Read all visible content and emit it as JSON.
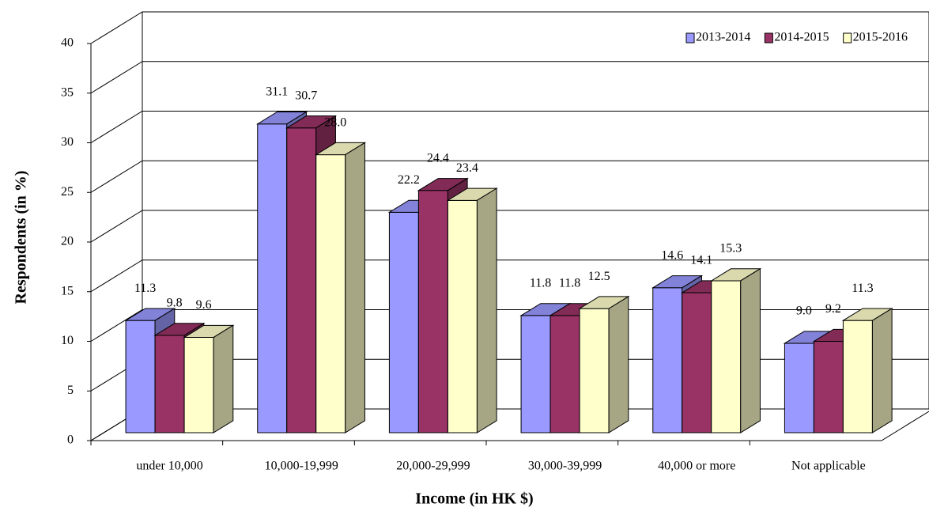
{
  "chart_data": {
    "type": "bar3d",
    "x_label": "Income (in HK $)",
    "y_label": "Respondents (in %)",
    "categories": [
      "under 10,000",
      "10,000-19,999",
      "20,000-29,999",
      "30,000-39,999",
      "40,000 or more",
      "Not applicable"
    ],
    "series": [
      {
        "name": "2013-2014",
        "color": "#9999ff",
        "values": [
          11.3,
          31.1,
          22.2,
          11.8,
          14.6,
          9.0
        ],
        "value_labels": [
          "11.3",
          "31.1",
          "22.2",
          "11.8",
          "14.6",
          "9.0"
        ]
      },
      {
        "name": "2014-2015",
        "color": "#993366",
        "values": [
          9.8,
          30.7,
          24.4,
          11.8,
          14.1,
          9.2
        ],
        "value_labels": [
          "9.8",
          "30.7",
          "24.4",
          "11.8",
          "14.1",
          "9.2"
        ]
      },
      {
        "name": "2015-2016",
        "color": "#ffffcc",
        "values": [
          9.6,
          28.0,
          23.4,
          12.5,
          15.3,
          11.3
        ],
        "value_labels": [
          "9.6",
          "28.0",
          "23.4",
          "12.5",
          "15.3",
          "11.3"
        ]
      }
    ],
    "ylim": [
      0,
      40
    ],
    "yticks": [
      0,
      5,
      10,
      15,
      20,
      25,
      30,
      35,
      40
    ],
    "grid": true,
    "legend": "upper right"
  }
}
